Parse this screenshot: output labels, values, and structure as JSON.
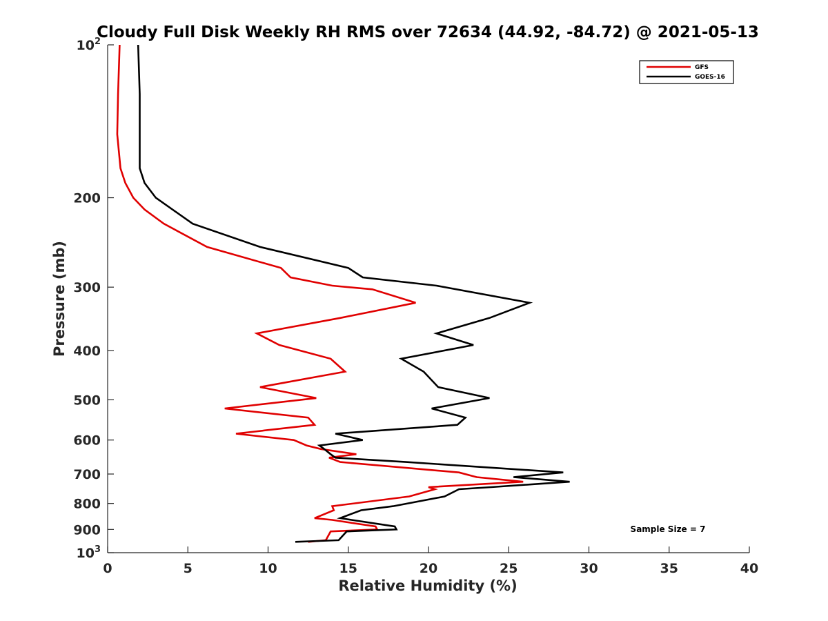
{
  "chart_data": {
    "type": "line",
    "title": "Cloudy Full Disk Weekly RH RMS over 72634 (44.92, -84.72) @ 2021-05-13",
    "xlabel": "Relative Humidity (%)",
    "ylabel": "Pressure (mb)",
    "xlim": [
      0,
      40
    ],
    "ylim": [
      100,
      1000
    ],
    "y_scale": "log",
    "y_reversed": true,
    "x_ticks": [
      "0",
      "5",
      "10",
      "15",
      "20",
      "25",
      "30",
      "35",
      "40"
    ],
    "y_ticks": [
      {
        "value": 100,
        "label": "10",
        "sup": "2"
      },
      {
        "value": 200,
        "label": "200",
        "sup": ""
      },
      {
        "value": 300,
        "label": "300",
        "sup": ""
      },
      {
        "value": 400,
        "label": "400",
        "sup": ""
      },
      {
        "value": 500,
        "label": "500",
        "sup": ""
      },
      {
        "value": 600,
        "label": "600",
        "sup": ""
      },
      {
        "value": 700,
        "label": "700",
        "sup": ""
      },
      {
        "value": 800,
        "label": "800",
        "sup": ""
      },
      {
        "value": 900,
        "label": "900",
        "sup": ""
      },
      {
        "value": 1000,
        "label": "10",
        "sup": "3"
      }
    ],
    "legend_position": "top-right",
    "annotation": "Sample Size = 7",
    "series": [
      {
        "name": "GFS",
        "color": "#e00000",
        "points": [
          [
            0.75,
            100
          ],
          [
            0.65,
            125
          ],
          [
            0.6,
            150
          ],
          [
            0.8,
            175
          ],
          [
            1.1,
            187
          ],
          [
            1.6,
            200
          ],
          [
            2.3,
            211
          ],
          [
            3.5,
            225
          ],
          [
            6.2,
            250
          ],
          [
            10.8,
            275
          ],
          [
            11.4,
            287
          ],
          [
            14.0,
            298
          ],
          [
            16.5,
            303
          ],
          [
            19.2,
            322
          ],
          [
            14.5,
            345
          ],
          [
            9.3,
            370
          ],
          [
            10.7,
            390
          ],
          [
            13.9,
            415
          ],
          [
            14.8,
            440
          ],
          [
            9.5,
            472
          ],
          [
            13.0,
            496
          ],
          [
            7.3,
            520
          ],
          [
            12.5,
            542
          ],
          [
            12.9,
            560
          ],
          [
            8.0,
            583
          ],
          [
            11.6,
            600
          ],
          [
            12.4,
            615
          ],
          [
            13.3,
            625
          ],
          [
            15.5,
            640
          ],
          [
            13.8,
            650
          ],
          [
            14.5,
            663
          ],
          [
            21.9,
            695
          ],
          [
            23.0,
            710
          ],
          [
            25.9,
            725
          ],
          [
            20.0,
            743
          ],
          [
            20.4,
            750
          ],
          [
            18.8,
            775
          ],
          [
            14.0,
            810
          ],
          [
            14.1,
            825
          ],
          [
            12.9,
            855
          ],
          [
            14.0,
            862
          ],
          [
            16.7,
            888
          ],
          [
            16.8,
            900
          ],
          [
            13.9,
            908
          ],
          [
            13.6,
            945
          ],
          [
            12.5,
            952
          ]
        ]
      },
      {
        "name": "GOES-16",
        "color": "#000000",
        "points": [
          [
            1.9,
            100
          ],
          [
            2.0,
            125
          ],
          [
            2.0,
            150
          ],
          [
            2.0,
            175
          ],
          [
            2.3,
            187
          ],
          [
            3.0,
            200
          ],
          [
            5.3,
            225
          ],
          [
            9.5,
            250
          ],
          [
            15.0,
            275
          ],
          [
            15.9,
            287
          ],
          [
            20.5,
            298
          ],
          [
            26.3,
            322
          ],
          [
            23.8,
            345
          ],
          [
            20.5,
            370
          ],
          [
            22.8,
            390
          ],
          [
            18.3,
            415
          ],
          [
            19.7,
            440
          ],
          [
            20.6,
            472
          ],
          [
            23.8,
            496
          ],
          [
            20.2,
            520
          ],
          [
            22.3,
            542
          ],
          [
            21.8,
            560
          ],
          [
            14.2,
            583
          ],
          [
            15.9,
            600
          ],
          [
            13.2,
            615
          ],
          [
            13.5,
            625
          ],
          [
            13.9,
            640
          ],
          [
            14.2,
            650
          ],
          [
            18.6,
            663
          ],
          [
            28.4,
            695
          ],
          [
            25.3,
            710
          ],
          [
            28.8,
            725
          ],
          [
            23.9,
            743
          ],
          [
            21.9,
            750
          ],
          [
            21.0,
            775
          ],
          [
            17.8,
            810
          ],
          [
            15.8,
            825
          ],
          [
            14.5,
            855
          ],
          [
            15.2,
            862
          ],
          [
            17.9,
            888
          ],
          [
            18.0,
            900
          ],
          [
            14.9,
            908
          ],
          [
            14.4,
            945
          ],
          [
            11.7,
            952
          ]
        ]
      }
    ]
  }
}
